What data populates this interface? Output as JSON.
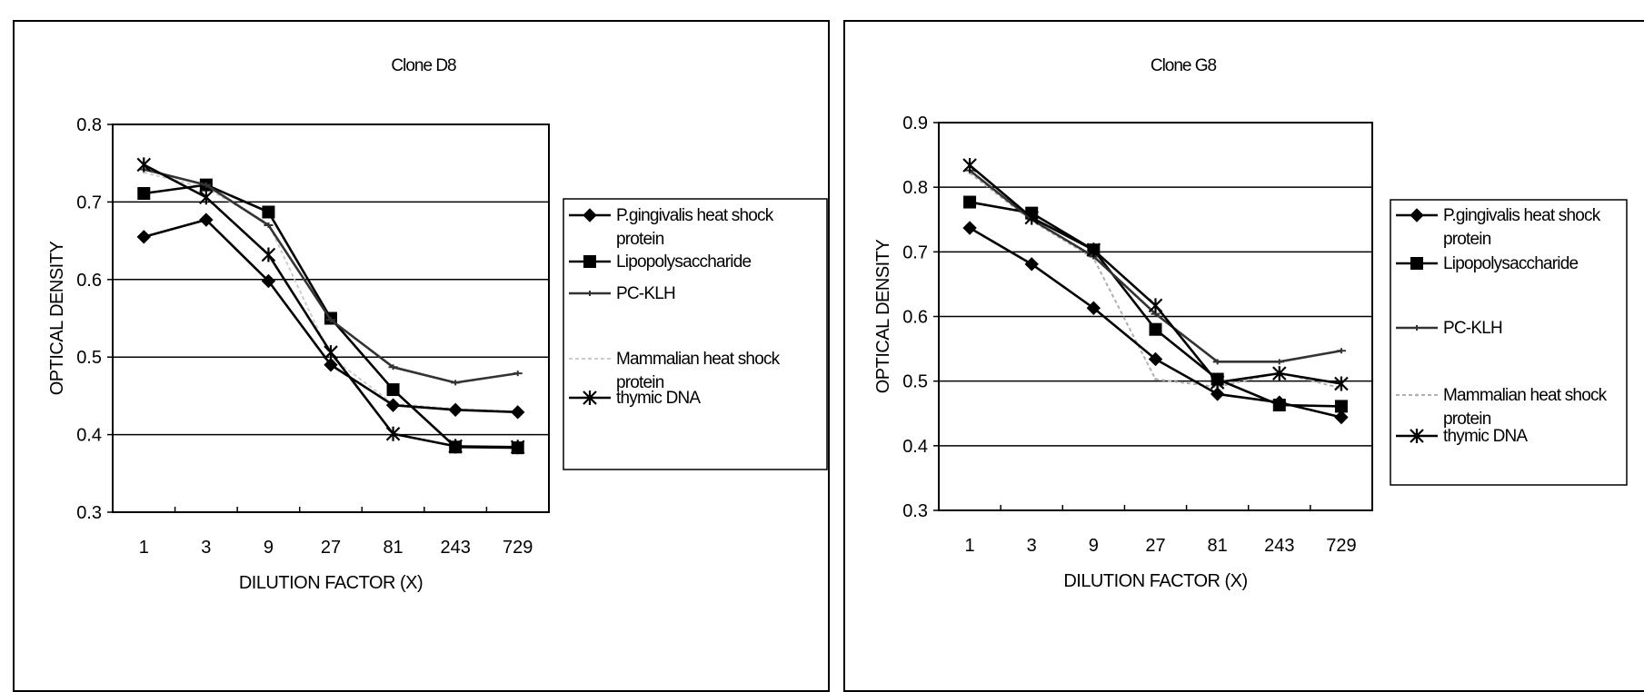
{
  "chart_data": [
    {
      "type": "line",
      "title": "Clone D8",
      "xlabel": "DILUTION FACTOR (X)",
      "ylabel": "OPTICAL DENSITY",
      "categories": [
        "1",
        "3",
        "9",
        "27",
        "81",
        "243",
        "729"
      ],
      "ylim": [
        0.3,
        0.8
      ],
      "yticks": [
        "0.3",
        "0.4",
        "0.5",
        "0.6",
        "0.7",
        "0.8"
      ],
      "grid": "horizontal",
      "legend_position": "right",
      "series": [
        {
          "name": "P.gingivalis heat shock protein",
          "name_lines": [
            "P.gingivalis heat shock",
            "protein"
          ],
          "marker": "diamond",
          "color": "#000000",
          "values": [
            0.655,
            0.677,
            0.598,
            0.49,
            0.438,
            0.432,
            0.429
          ]
        },
        {
          "name": "Lipopolysaccharide",
          "name_lines": [
            "Lipopolysaccharide"
          ],
          "marker": "square",
          "color": "#000000",
          "values": [
            0.711,
            0.722,
            0.687,
            0.55,
            0.458,
            0.384,
            0.383
          ]
        },
        {
          "name": "PC-KLH",
          "name_lines": [
            "PC-KLH"
          ],
          "marker": "dash",
          "color": "#333333",
          "values": [
            0.742,
            0.722,
            0.67,
            0.548,
            0.487,
            0.467,
            0.479
          ]
        },
        {
          "name": "Mammalian heat shock protein",
          "name_lines": [
            "Mammalian heat shock",
            "protein"
          ],
          "marker": "none",
          "color": "#cccccc",
          "values": [
            0.738,
            0.718,
            0.672,
            0.5,
            0.44,
            0.433,
            0.43
          ]
        },
        {
          "name": "thymic DNA",
          "name_lines": [
            "thymic DNA"
          ],
          "marker": "star",
          "color": "#000000",
          "values": [
            0.748,
            0.706,
            0.632,
            0.506,
            0.401,
            0.385,
            0.384
          ]
        }
      ]
    },
    {
      "type": "line",
      "title": "Clone G8",
      "xlabel": "DILUTION FACTOR (X)",
      "ylabel": "OPTICAL DENSITY",
      "categories": [
        "1",
        "3",
        "9",
        "27",
        "81",
        "243",
        "729"
      ],
      "ylim": [
        0.3,
        0.9
      ],
      "yticks": [
        "0.3",
        "0.4",
        "0.5",
        "0.6",
        "0.7",
        "0.8",
        "0.9"
      ],
      "grid": "horizontal",
      "legend_position": "right",
      "series": [
        {
          "name": "P.gingivalis heat shock protein",
          "name_lines": [
            "P.gingivalis heat shock",
            "protein"
          ],
          "marker": "diamond",
          "color": "#000000",
          "values": [
            0.737,
            0.681,
            0.613,
            0.534,
            0.48,
            0.467,
            0.444
          ]
        },
        {
          "name": "Lipopolysaccharide",
          "name_lines": [
            "Lipopolysaccharide"
          ],
          "marker": "square",
          "color": "#000000",
          "values": [
            0.777,
            0.76,
            0.703,
            0.58,
            0.503,
            0.463,
            0.461
          ]
        },
        {
          "name": "PC-KLH",
          "name_lines": [
            "PC-KLH"
          ],
          "marker": "dash",
          "color": "#333333",
          "values": [
            0.826,
            0.75,
            0.693,
            0.604,
            0.53,
            0.53,
            0.547
          ]
        },
        {
          "name": "Mammalian heat shock protein",
          "name_lines": [
            "Mammalian heat shock",
            "protein"
          ],
          "marker": "none",
          "color": "#b0b0b0",
          "values": [
            0.822,
            0.748,
            0.69,
            0.503,
            0.491,
            0.513,
            0.489
          ]
        },
        {
          "name": "thymic DNA",
          "name_lines": [
            "thymic DNA"
          ],
          "marker": "star",
          "color": "#000000",
          "values": [
            0.834,
            0.753,
            0.703,
            0.617,
            0.498,
            0.512,
            0.496
          ]
        }
      ]
    }
  ]
}
